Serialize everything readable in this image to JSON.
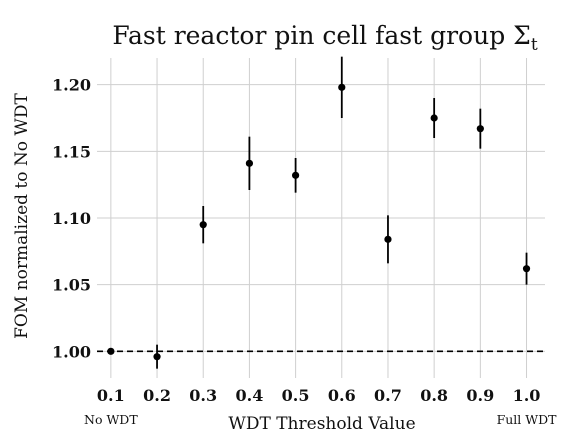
{
  "chart_data": {
    "type": "scatter",
    "title": "Fast reactor pin cell fast group Σ",
    "title_subscript": "t",
    "xlabel": "WDT Threshold Value",
    "ylabel": "FOM normalized to No WDT",
    "grid": true,
    "xlim": [
      0.07,
      1.04
    ],
    "ylim": [
      0.98,
      1.22
    ],
    "x_ticks": [
      "0.1",
      "0.2",
      "0.3",
      "0.4",
      "0.5",
      "0.6",
      "0.7",
      "0.8",
      "0.9",
      "1.0"
    ],
    "y_ticks": [
      "1.00",
      "1.05",
      "1.10",
      "1.15",
      "1.20"
    ],
    "x_annotations": [
      {
        "x": 0.1,
        "text": "No WDT"
      },
      {
        "x": 1.0,
        "text": "Full WDT"
      }
    ],
    "reference_line": {
      "y": 1.0,
      "style": "dashed"
    },
    "series": [
      {
        "x": [
          0.1,
          0.2,
          0.3,
          0.4,
          0.5,
          0.6,
          0.7,
          0.8,
          0.9,
          1.0
        ],
        "y": [
          1.0,
          0.996,
          1.095,
          1.141,
          1.132,
          1.198,
          1.084,
          1.175,
          1.167,
          1.062
        ],
        "y_err": [
          0.0,
          0.009,
          0.014,
          0.02,
          0.013,
          0.023,
          0.018,
          0.015,
          0.015,
          0.012
        ]
      }
    ]
  }
}
